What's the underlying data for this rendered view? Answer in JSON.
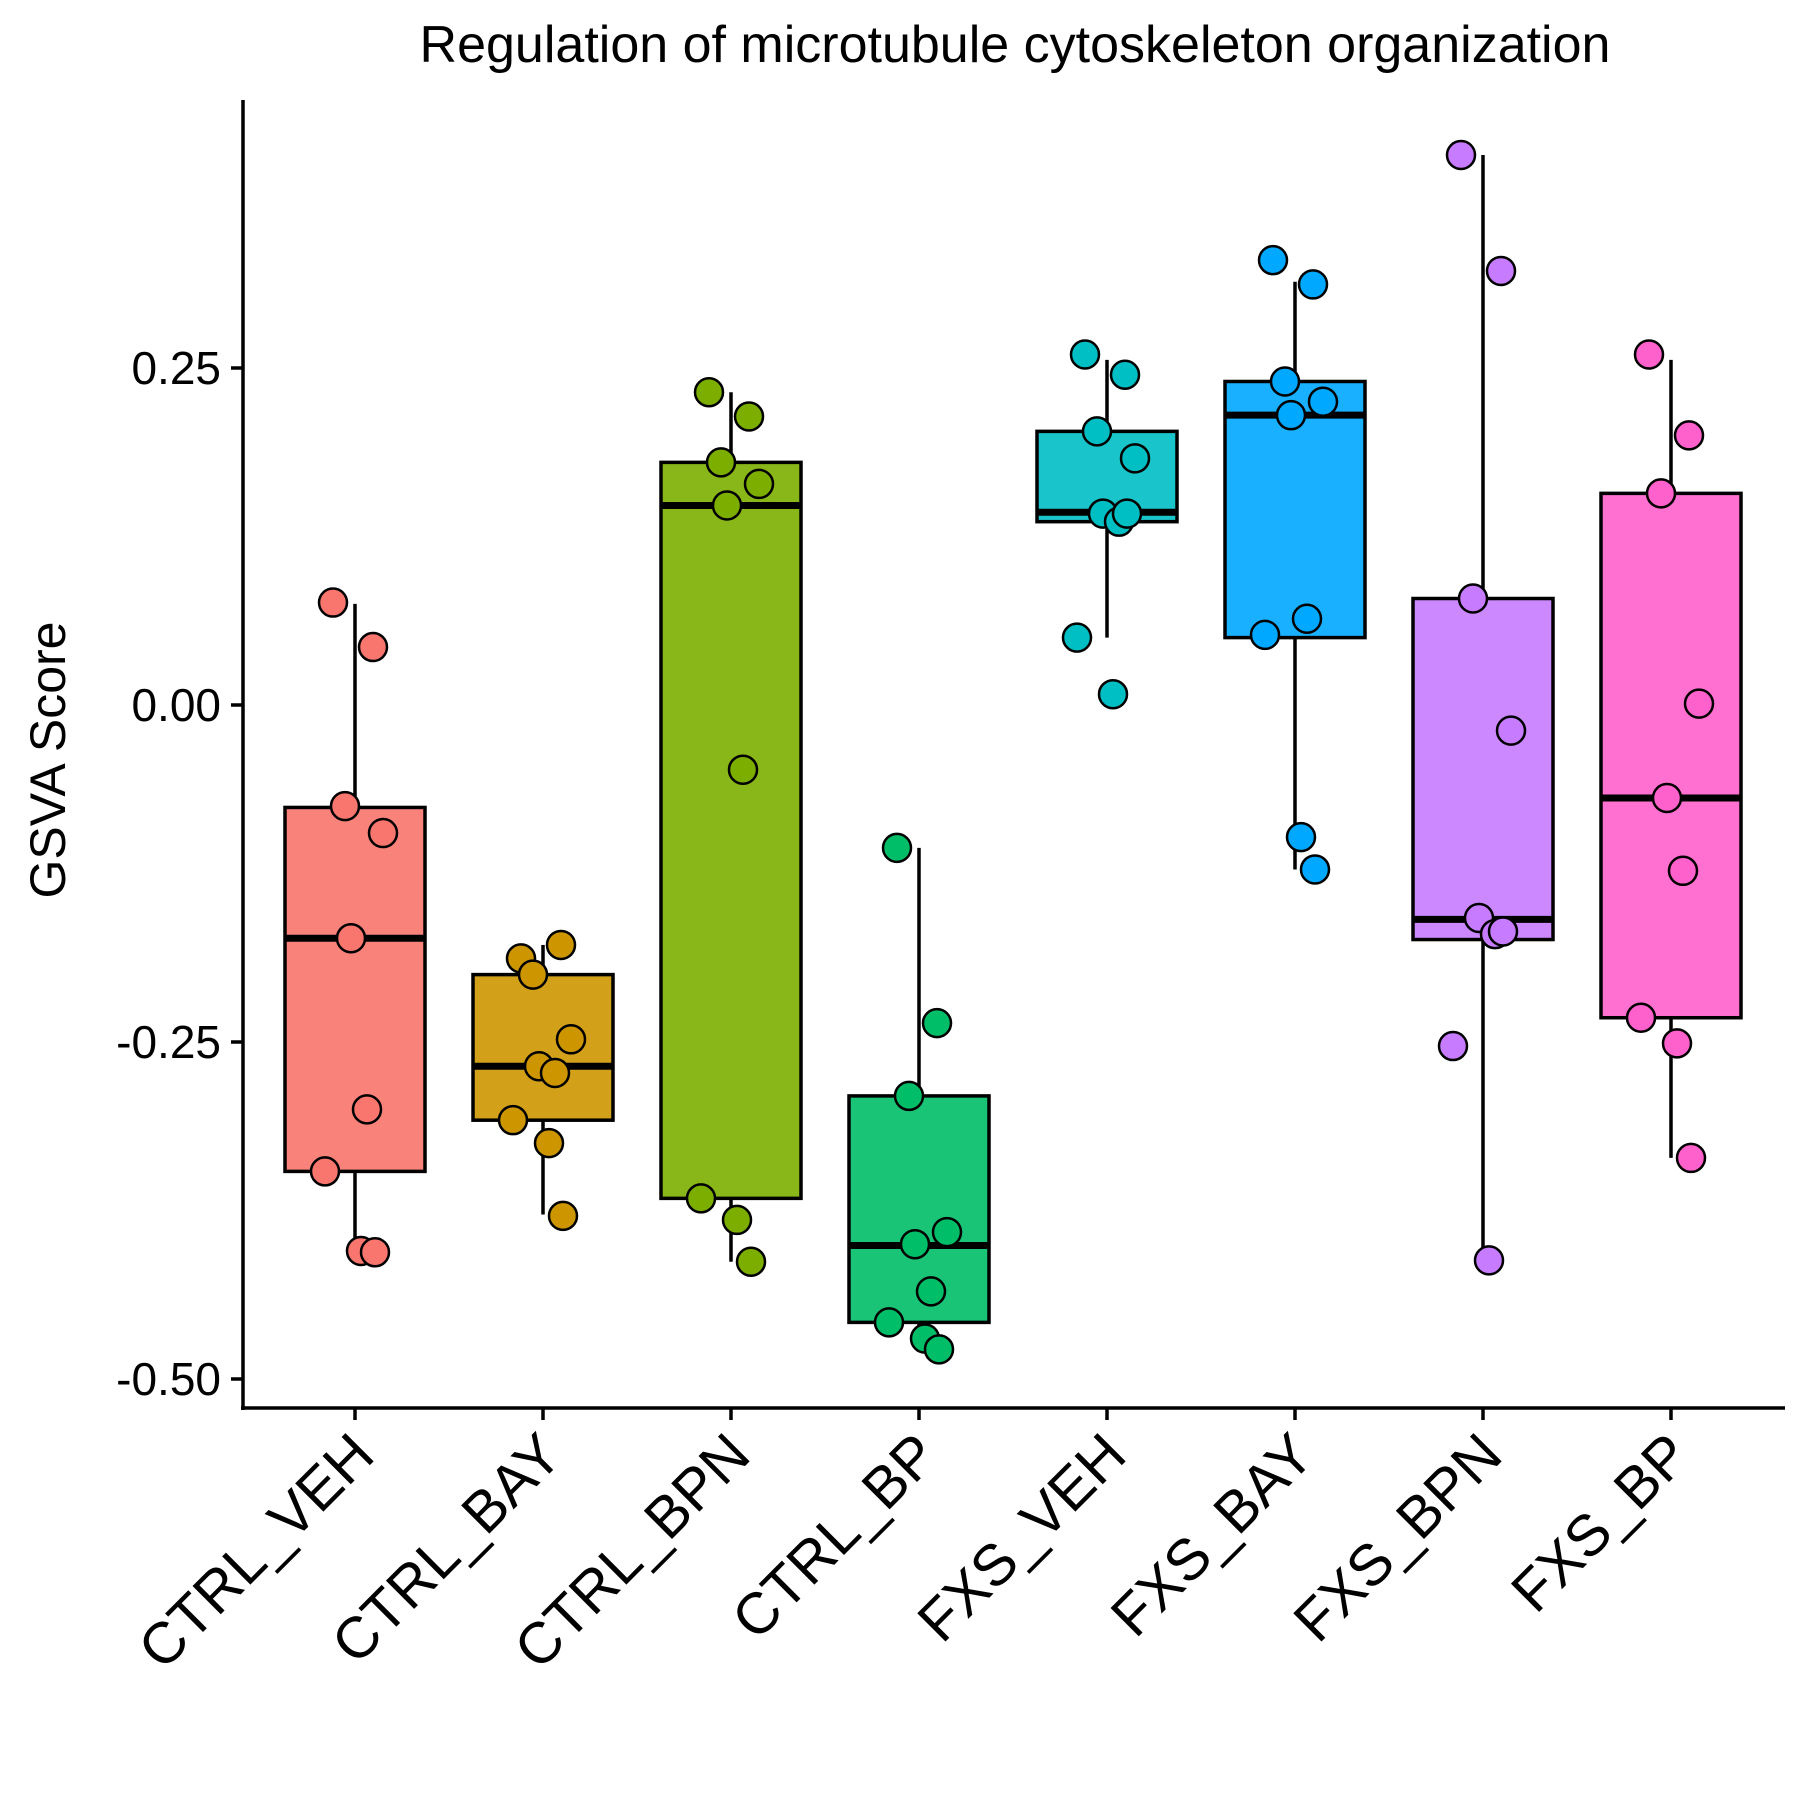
{
  "chart_data": {
    "type": "boxplot",
    "title": "Regulation of microtubule cytoskeleton organization",
    "xlabel": "",
    "ylabel": "GSVA Score",
    "ylim": [
      -0.52,
      0.45
    ],
    "yticks": [
      0.25,
      0.0,
      -0.25,
      -0.5
    ],
    "ytick_labels": [
      "0.25",
      "0.00",
      "-0.25",
      "-0.50"
    ],
    "grid": false,
    "legend": "none",
    "categories": [
      "CTRL_VEH",
      "CTRL_BAY",
      "CTRL_BPN",
      "CTRL_BP",
      "FXS_VEH",
      "FXS_BAY",
      "FXS_BPN",
      "FXS_BP"
    ],
    "colors": [
      "#F8766D",
      "#CD9600",
      "#7CAE00",
      "#00BE67",
      "#00BFC4",
      "#00A9FF",
      "#C77CFF",
      "#FF61CC"
    ],
    "boxes": [
      {
        "q1": -0.346,
        "median": -0.173,
        "q3": -0.076,
        "whisker_low": -0.405,
        "whisker_high": 0.075
      },
      {
        "q1": -0.308,
        "median": -0.268,
        "q3": -0.2,
        "whisker_low": -0.378,
        "whisker_high": -0.178
      },
      {
        "q1": -0.366,
        "median": 0.148,
        "q3": 0.18,
        "whisker_low": -0.413,
        "whisker_high": 0.232
      },
      {
        "q1": -0.458,
        "median": -0.401,
        "q3": -0.29,
        "whisker_low": -0.477,
        "whisker_high": -0.106
      },
      {
        "q1": 0.136,
        "median": 0.143,
        "q3": 0.203,
        "whisker_low": 0.05,
        "whisker_high": 0.256
      },
      {
        "q1": 0.05,
        "median": 0.215,
        "q3": 0.24,
        "whisker_low": -0.122,
        "whisker_high": 0.314
      },
      {
        "q1": -0.174,
        "median": -0.159,
        "q3": 0.079,
        "whisker_low": -0.412,
        "whisker_high": 0.408
      },
      {
        "q1": -0.232,
        "median": -0.069,
        "q3": 0.157,
        "whisker_low": -0.336,
        "whisker_high": 0.256
      }
    ],
    "points": [
      [
        0.076,
        0.043,
        -0.075,
        -0.095,
        -0.173,
        -0.3,
        -0.346,
        -0.405,
        -0.406
      ],
      [
        -0.188,
        -0.178,
        -0.2,
        -0.248,
        -0.268,
        -0.273,
        -0.308,
        -0.325,
        -0.379
      ],
      [
        0.232,
        0.214,
        0.18,
        0.164,
        0.148,
        -0.048,
        -0.366,
        -0.382,
        -0.413
      ],
      [
        -0.106,
        -0.236,
        -0.29,
        -0.391,
        -0.4,
        -0.435,
        -0.458,
        -0.47,
        -0.478
      ],
      [
        0.26,
        0.245,
        0.203,
        0.183,
        0.142,
        0.136,
        0.05,
        0.008,
        0.142
      ],
      [
        0.33,
        0.312,
        0.24,
        0.225,
        0.215,
        0.064,
        0.052,
        -0.098,
        -0.122
      ],
      [
        0.408,
        0.322,
        0.079,
        -0.019,
        -0.158,
        -0.17,
        -0.253,
        -0.412,
        -0.168
      ],
      [
        0.26,
        0.2,
        0.157,
        0.001,
        -0.069,
        -0.123,
        -0.232,
        -0.251,
        -0.336
      ]
    ]
  }
}
